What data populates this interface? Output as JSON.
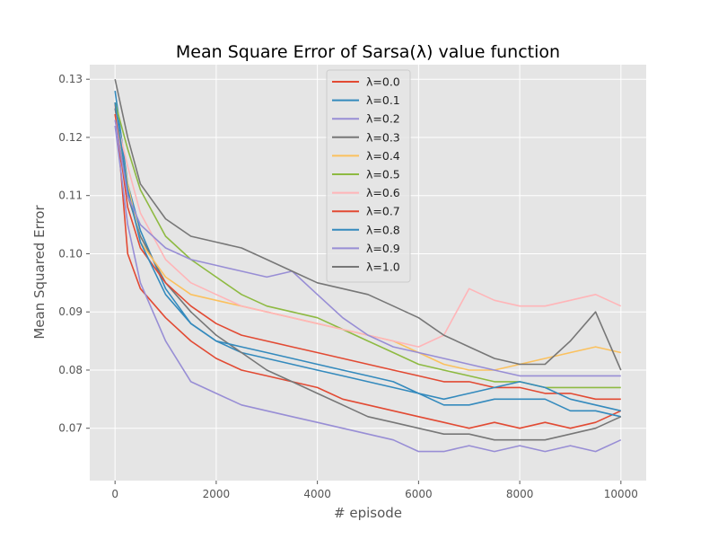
{
  "chart_data": {
    "type": "line",
    "title": "Mean Square Error of Sarsa(λ) value function",
    "xlabel": "# episode",
    "ylabel": "Mean Squared Error",
    "xlim": [
      -500,
      10500
    ],
    "ylim": [
      0.061,
      0.1325
    ],
    "xticks": [
      0,
      2000,
      4000,
      6000,
      8000,
      10000
    ],
    "yticks": [
      0.07,
      0.08,
      0.09,
      0.1,
      0.11,
      0.12,
      0.13
    ],
    "ytick_labels": [
      "0.07",
      "0.08",
      "0.09",
      "0.10",
      "0.11",
      "0.12",
      "0.13"
    ],
    "grid": true,
    "legend_position": "upper center",
    "x": [
      0,
      250,
      500,
      1000,
      1500,
      2000,
      2500,
      3000,
      3500,
      4000,
      4500,
      5000,
      5500,
      6000,
      6500,
      7000,
      7500,
      8000,
      8500,
      9000,
      9500,
      10000
    ],
    "series": [
      {
        "name": "λ=0.0",
        "color": "#E24A33",
        "values": [
          0.126,
          0.1,
          0.094,
          0.089,
          0.085,
          0.082,
          0.08,
          0.079,
          0.078,
          0.077,
          0.075,
          0.074,
          0.073,
          0.072,
          0.071,
          0.07,
          0.071,
          0.07,
          0.071,
          0.07,
          0.071,
          0.073
        ]
      },
      {
        "name": "λ=0.1",
        "color": "#348ABD",
        "values": [
          0.128,
          0.112,
          0.104,
          0.094,
          0.088,
          0.085,
          0.083,
          0.082,
          0.081,
          0.08,
          0.079,
          0.078,
          0.077,
          0.076,
          0.074,
          0.074,
          0.075,
          0.075,
          0.075,
          0.073,
          0.073,
          0.072
        ]
      },
      {
        "name": "λ=0.2",
        "color": "#988ED5",
        "values": [
          0.122,
          0.105,
          0.095,
          0.085,
          0.078,
          0.076,
          0.074,
          0.073,
          0.072,
          0.071,
          0.07,
          0.069,
          0.068,
          0.066,
          0.066,
          0.067,
          0.066,
          0.067,
          0.066,
          0.067,
          0.066,
          0.068
        ]
      },
      {
        "name": "λ=0.3",
        "color": "#777777",
        "values": [
          0.125,
          0.11,
          0.103,
          0.095,
          0.09,
          0.086,
          0.083,
          0.08,
          0.078,
          0.076,
          0.074,
          0.072,
          0.071,
          0.07,
          0.069,
          0.069,
          0.068,
          0.068,
          0.068,
          0.069,
          0.07,
          0.072
        ]
      },
      {
        "name": "λ=0.4",
        "color": "#FBC15E",
        "values": [
          0.124,
          0.112,
          0.102,
          0.096,
          0.093,
          0.092,
          0.091,
          0.09,
          0.089,
          0.088,
          0.087,
          0.086,
          0.085,
          0.083,
          0.081,
          0.08,
          0.08,
          0.081,
          0.082,
          0.083,
          0.084,
          0.083
        ]
      },
      {
        "name": "λ=0.5",
        "color": "#8EBA42",
        "values": [
          0.126,
          0.118,
          0.111,
          0.103,
          0.099,
          0.096,
          0.093,
          0.091,
          0.09,
          0.089,
          0.087,
          0.085,
          0.083,
          0.081,
          0.08,
          0.079,
          0.078,
          0.078,
          0.077,
          0.077,
          0.077,
          0.077
        ]
      },
      {
        "name": "λ=0.6",
        "color": "#FFB5B8",
        "values": [
          0.124,
          0.115,
          0.107,
          0.099,
          0.095,
          0.093,
          0.091,
          0.09,
          0.089,
          0.088,
          0.087,
          0.086,
          0.085,
          0.084,
          0.086,
          0.094,
          0.092,
          0.091,
          0.091,
          0.092,
          0.093,
          0.091
        ]
      },
      {
        "name": "λ=0.7",
        "color": "#E24A33",
        "values": [
          0.124,
          0.108,
          0.101,
          0.095,
          0.091,
          0.088,
          0.086,
          0.085,
          0.084,
          0.083,
          0.082,
          0.081,
          0.08,
          0.079,
          0.078,
          0.078,
          0.077,
          0.077,
          0.076,
          0.076,
          0.075,
          0.075
        ]
      },
      {
        "name": "λ=0.8",
        "color": "#348ABD",
        "values": [
          0.126,
          0.111,
          0.102,
          0.093,
          0.088,
          0.085,
          0.084,
          0.083,
          0.082,
          0.081,
          0.08,
          0.079,
          0.078,
          0.076,
          0.075,
          0.076,
          0.077,
          0.078,
          0.077,
          0.075,
          0.074,
          0.073
        ]
      },
      {
        "name": "λ=0.9",
        "color": "#988ED5",
        "values": [
          0.123,
          0.11,
          0.105,
          0.101,
          0.099,
          0.098,
          0.097,
          0.096,
          0.097,
          0.093,
          0.089,
          0.086,
          0.084,
          0.083,
          0.082,
          0.081,
          0.08,
          0.079,
          0.079,
          0.079,
          0.079,
          0.079
        ]
      },
      {
        "name": "λ=1.0",
        "color": "#777777",
        "values": [
          0.13,
          0.12,
          0.112,
          0.106,
          0.103,
          0.102,
          0.101,
          0.099,
          0.097,
          0.095,
          0.094,
          0.093,
          0.091,
          0.089,
          0.086,
          0.084,
          0.082,
          0.081,
          0.081,
          0.085,
          0.09,
          0.08
        ]
      }
    ]
  }
}
